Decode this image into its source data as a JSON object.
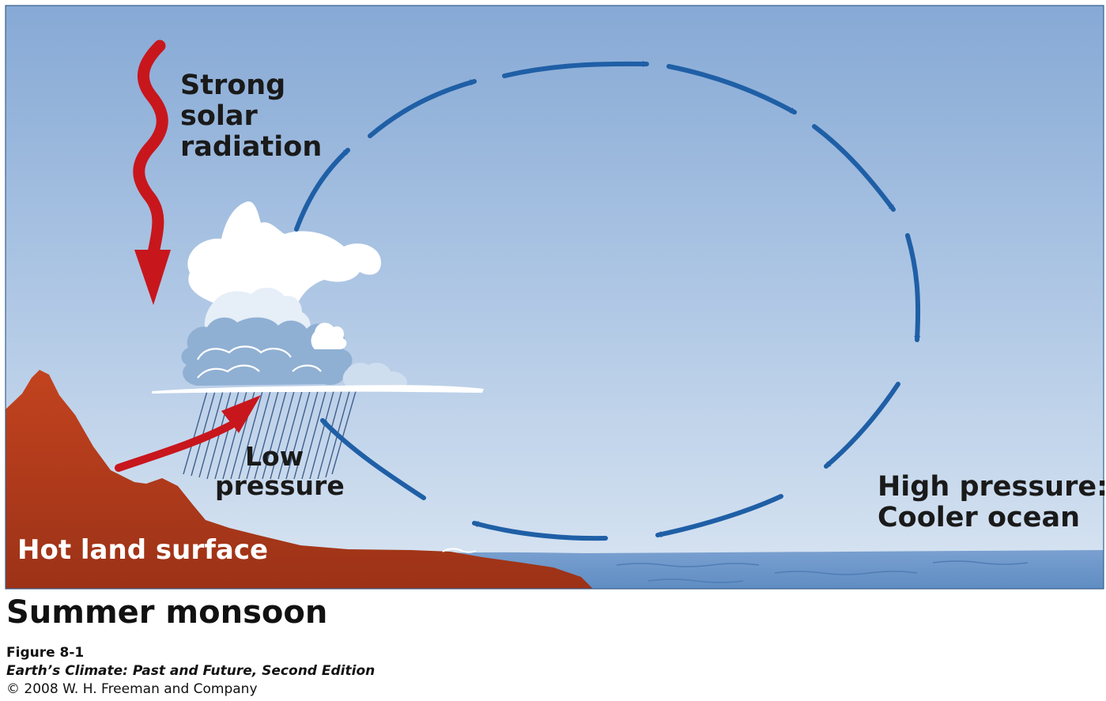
{
  "diagram": {
    "labels": {
      "solar_lines": [
        "Strong",
        "solar",
        "radiation"
      ],
      "low_lines": [
        "Low",
        "pressure"
      ],
      "high_lines": [
        "High pressure:",
        "Cooler ocean"
      ],
      "land": "Hot land surface"
    },
    "colors": {
      "sky_top": "#86a9d5",
      "sky_bottom": "#d9e5f2",
      "circulation_arrow": "#1f5fa6",
      "radiation_arrow": "#c8161d",
      "land": "#b83a1f",
      "ocean": "#6a93c6"
    },
    "icons": {
      "radiation": "wavy-arrow-down",
      "circulation": "dashed-ellipse-arrows",
      "cloud": "cumulonimbus-cloud",
      "rain": "rain-streaks"
    }
  },
  "caption": {
    "title": "Summer monsoon",
    "figure": "Figure 8-1",
    "book": "Earth’s Climate: Past and Future, Second Edition",
    "copyright": "© 2008 W. H. Freeman and Company"
  }
}
